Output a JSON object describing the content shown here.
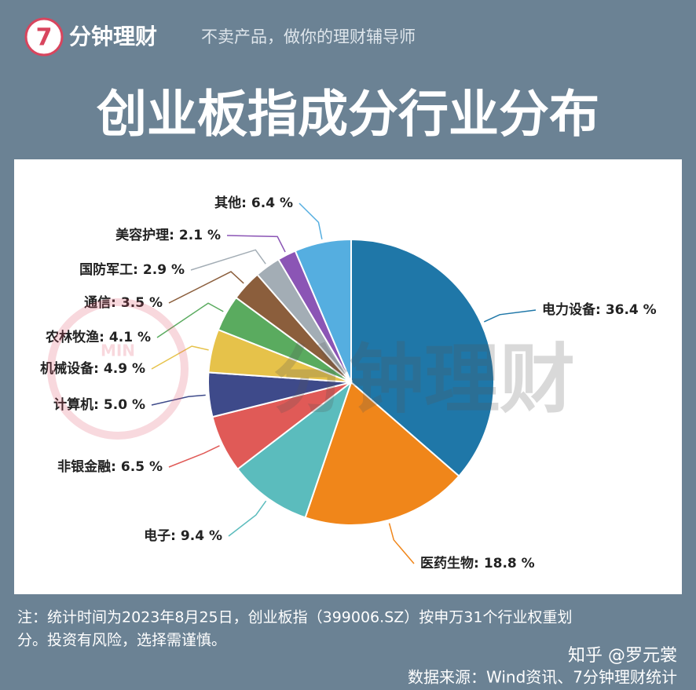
{
  "header": {
    "logo": "7",
    "brand": "分钟理财",
    "tagline": "不卖产品，做你的理财辅导师"
  },
  "chart_data": {
    "type": "pie",
    "title": "创业板指成分行业分布",
    "categories": [
      "电力设备",
      "医药生物",
      "电子",
      "非银金融",
      "计算机",
      "机械设备",
      "农林牧渔",
      "通信",
      "国防军工",
      "美容护理",
      "其他"
    ],
    "values": [
      36.4,
      18.8,
      9.4,
      6.5,
      5.0,
      4.9,
      4.1,
      3.5,
      2.9,
      2.1,
      6.4
    ],
    "value_labels": [
      "36.4 %",
      "18.8 %",
      "9.4 %",
      "6.5 %",
      "5.0 %",
      "4.9 %",
      "4.1 %",
      "3.5 %",
      "2.9 %",
      "2.1 %",
      "6.4 %"
    ],
    "label_separator": ":",
    "colors": [
      "#1f77a8",
      "#f0861a",
      "#5bbcbd",
      "#e05a57",
      "#3e4a8a",
      "#e6c24a",
      "#5aab5f",
      "#8b5e3c",
      "#a3adb5",
      "#8b55b5",
      "#55aee0"
    ]
  },
  "watermark": {
    "text": "分钟理财",
    "badge": "MIN"
  },
  "footer": {
    "note": [
      "注：统计时间为2023年8月25日，创业板指（399006.SZ）按申万31个行业权重划",
      "分。投资有风险，选择需谨慎。"
    ],
    "author": "知乎 @罗元裳",
    "source": "数据来源：Wind资讯、7分钟理财统计"
  }
}
